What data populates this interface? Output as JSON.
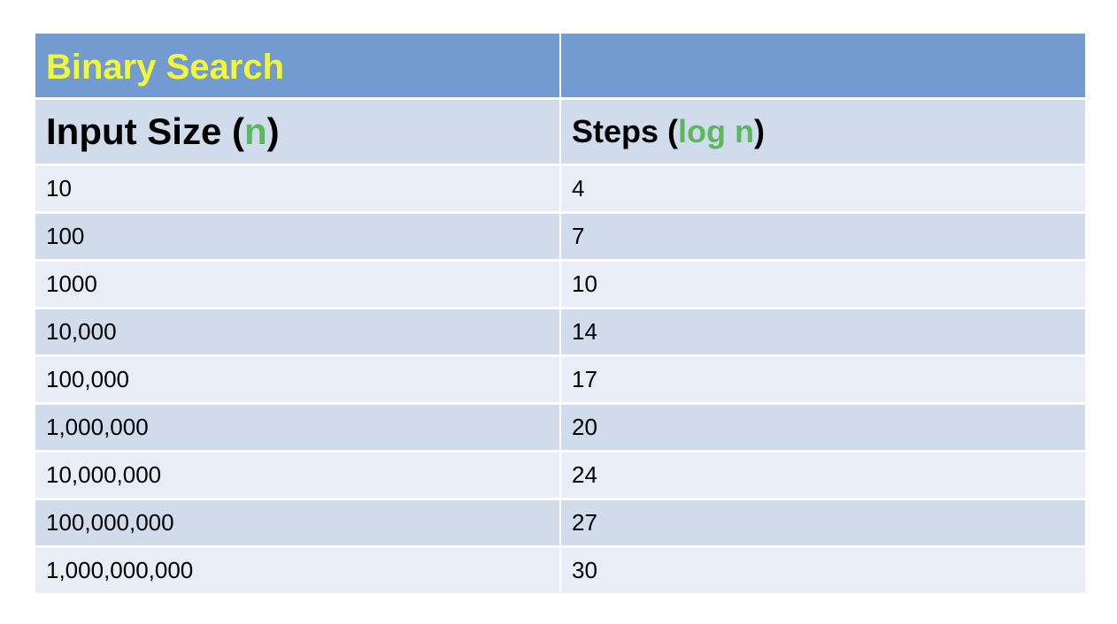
{
  "table": {
    "title": "Binary Search",
    "header": {
      "col1_prefix": "Input Size (",
      "col1_var": "n",
      "col1_suffix": ")",
      "col2_prefix": "Steps (",
      "col2_var": "log n",
      "col2_suffix": ")"
    },
    "rows": [
      {
        "n": "10",
        "steps": "4"
      },
      {
        "n": "100",
        "steps": "7"
      },
      {
        "n": "1000",
        "steps": "10"
      },
      {
        "n": "10,000",
        "steps": "14"
      },
      {
        "n": "100,000",
        "steps": "17"
      },
      {
        "n": "1,000,000",
        "steps": "20"
      },
      {
        "n": "10,000,000",
        "steps": "24"
      },
      {
        "n": "100,000,000",
        "steps": "27"
      },
      {
        "n": "1,000,000,000",
        "steps": "30"
      }
    ],
    "colors": {
      "title_bg": "#729ccf",
      "title_text": "#f5f53a",
      "header_bg": "#d0dbeb",
      "row_light": "#e9edf5",
      "row_dark": "#d0dbeb",
      "accent_green": "#5cb85c"
    }
  }
}
